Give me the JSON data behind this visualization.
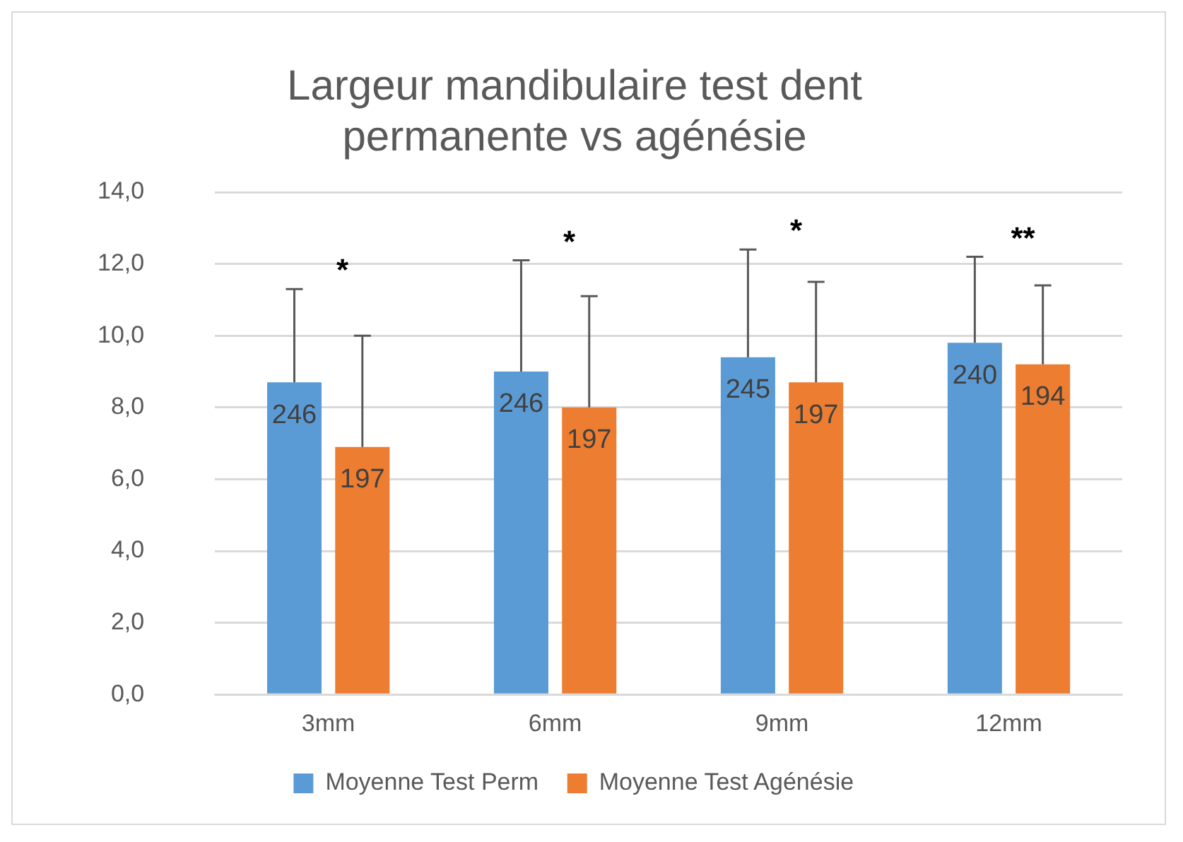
{
  "chart_data": {
    "type": "bar",
    "title": "Largeur mandibulaire test dent permanente vs agénésie",
    "categories": [
      "3mm",
      "6mm",
      "9mm",
      "12mm"
    ],
    "series": [
      {
        "name": "Moyenne Test Perm",
        "color": "#5b9bd5",
        "values": [
          8.7,
          9.0,
          9.4,
          9.8
        ],
        "errors": [
          [
            8.7,
            11.3
          ],
          [
            9.0,
            12.1
          ],
          [
            9.4,
            12.4
          ],
          [
            9.8,
            12.2
          ]
        ]
      },
      {
        "name": "Moyenne Test Agénésie",
        "color": "#ed7d31",
        "values": [
          6.9,
          8.0,
          8.7,
          9.2
        ],
        "errors": [
          [
            6.9,
            10.0
          ],
          [
            8.0,
            11.1
          ],
          [
            8.7,
            11.5
          ],
          [
            9.2,
            11.4
          ]
        ]
      }
    ],
    "ylim": [
      0,
      14
    ],
    "yticks": [
      {
        "value": 0,
        "label": "0,0"
      },
      {
        "value": 2,
        "label": "2,0"
      },
      {
        "value": 4,
        "label": "4,0"
      },
      {
        "value": 6,
        "label": "6,0"
      },
      {
        "value": 8,
        "label": "8,0"
      },
      {
        "value": 10,
        "label": "10,0"
      },
      {
        "value": 12,
        "label": "12,0"
      },
      {
        "value": 14,
        "label": "14,0"
      }
    ],
    "grid": "y",
    "legend": "bottom",
    "annotations": [
      "*",
      "*",
      "*",
      "**",
      "246",
      "197",
      "246",
      "197",
      "245",
      "197",
      "240",
      "194"
    ]
  }
}
